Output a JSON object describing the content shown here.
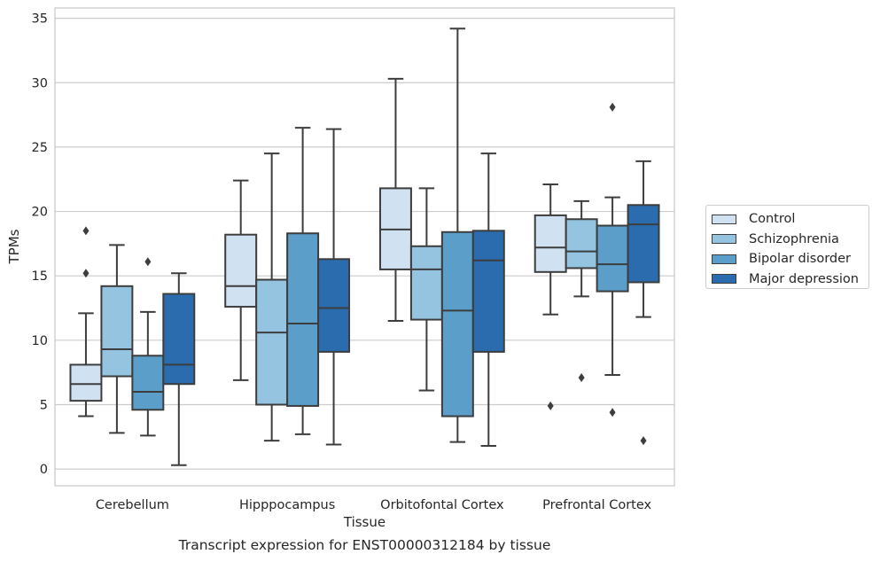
{
  "caption": "Transcript expression for ENST00000312184 by tissue",
  "chart_data": {
    "type": "box",
    "xlabel": "Tissue",
    "ylabel": "TPMs",
    "ylim": [
      -1.3,
      35.8
    ],
    "yticks": [
      0,
      5,
      10,
      15,
      20,
      25,
      30,
      35
    ],
    "grid": "horizontal",
    "legend_placement": "right",
    "categories": [
      "Cerebellum",
      "Hipppocampus",
      "Orbitofontal Cortex",
      "Prefrontal Cortex"
    ],
    "series": [
      {
        "name": "Control",
        "color": "#d0e1f2",
        "boxes": [
          {
            "whislo": 4.1,
            "q1": 5.3,
            "med": 6.6,
            "q3": 8.1,
            "whishi": 12.1,
            "fliers": [
              15.2,
              18.5
            ]
          },
          {
            "whislo": 6.9,
            "q1": 12.6,
            "med": 14.2,
            "q3": 18.2,
            "whishi": 22.4,
            "fliers": []
          },
          {
            "whislo": 11.5,
            "q1": 15.5,
            "med": 18.6,
            "q3": 21.8,
            "whishi": 30.3,
            "fliers": []
          },
          {
            "whislo": 12.0,
            "q1": 15.3,
            "med": 17.2,
            "q3": 19.7,
            "whishi": 22.1,
            "fliers": [
              4.9
            ]
          }
        ]
      },
      {
        "name": "Schizophrenia",
        "color": "#94c4df",
        "boxes": [
          {
            "whislo": 2.8,
            "q1": 7.2,
            "med": 9.3,
            "q3": 14.2,
            "whishi": 17.4,
            "fliers": []
          },
          {
            "whislo": 2.2,
            "q1": 5.0,
            "med": 10.6,
            "q3": 14.7,
            "whishi": 24.5,
            "fliers": []
          },
          {
            "whislo": 6.1,
            "q1": 11.6,
            "med": 15.5,
            "q3": 17.3,
            "whishi": 21.8,
            "fliers": []
          },
          {
            "whislo": 13.4,
            "q1": 15.6,
            "med": 16.9,
            "q3": 19.4,
            "whishi": 20.8,
            "fliers": [
              7.1
            ]
          }
        ]
      },
      {
        "name": "Bipolar disorder",
        "color": "#5a9ec9",
        "boxes": [
          {
            "whislo": 2.6,
            "q1": 4.6,
            "med": 6.0,
            "q3": 8.8,
            "whishi": 12.2,
            "fliers": [
              16.1
            ]
          },
          {
            "whislo": 2.7,
            "q1": 4.9,
            "med": 11.3,
            "q3": 18.3,
            "whishi": 26.5,
            "fliers": []
          },
          {
            "whislo": 2.1,
            "q1": 4.1,
            "med": 12.3,
            "q3": 18.4,
            "whishi": 34.2,
            "fliers": []
          },
          {
            "whislo": 7.3,
            "q1": 13.8,
            "med": 15.9,
            "q3": 18.9,
            "whishi": 21.1,
            "fliers": [
              4.4,
              28.1
            ]
          }
        ]
      },
      {
        "name": "Major depression",
        "color": "#2a6cae",
        "boxes": [
          {
            "whislo": 0.3,
            "q1": 6.6,
            "med": 8.1,
            "q3": 13.6,
            "whishi": 15.2,
            "fliers": []
          },
          {
            "whislo": 1.9,
            "q1": 9.1,
            "med": 12.5,
            "q3": 16.3,
            "whishi": 26.4,
            "fliers": []
          },
          {
            "whislo": 1.8,
            "q1": 9.1,
            "med": 16.2,
            "q3": 18.5,
            "whishi": 24.5,
            "fliers": []
          },
          {
            "whislo": 11.8,
            "q1": 14.5,
            "med": 19.0,
            "q3": 20.5,
            "whishi": 23.9,
            "fliers": [
              2.2
            ]
          }
        ]
      }
    ]
  }
}
